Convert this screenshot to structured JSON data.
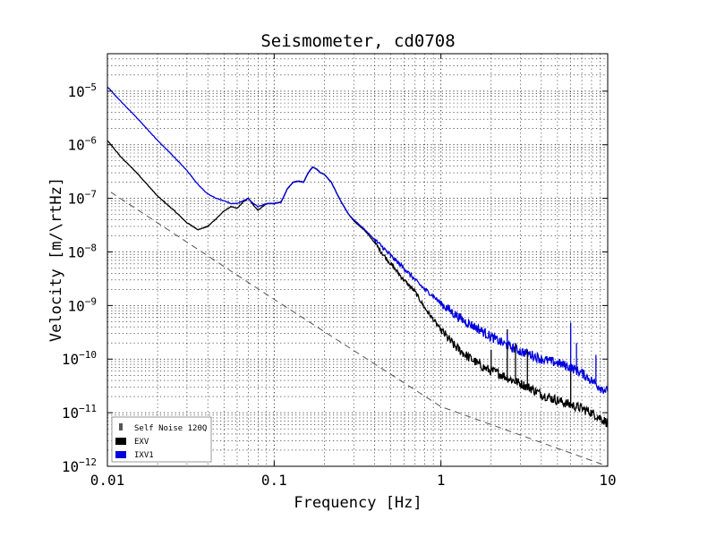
{
  "chart_data": {
    "type": "line",
    "title": "Seismometer, cd0708",
    "xlabel": "Frequency [Hz]",
    "ylabel": "Velocity [m/\\rtHz]",
    "x_scale": "log",
    "y_scale": "log",
    "xlim": [
      0.01,
      10
    ],
    "ylim": [
      1e-12,
      5e-05
    ],
    "grid": "major-and-minor-dotted",
    "legend_position": "bottom-left",
    "x_ticks": [
      {
        "value": 0.01,
        "label": "0.01"
      },
      {
        "value": 0.1,
        "label": "0.1"
      },
      {
        "value": 1,
        "label": "1"
      },
      {
        "value": 10,
        "label": "10"
      }
    ],
    "y_ticks": [
      {
        "value": 1e-12,
        "base": "10",
        "exp": "−12"
      },
      {
        "value": 1e-11,
        "base": "10",
        "exp": "−11"
      },
      {
        "value": 1e-10,
        "base": "10",
        "exp": "−10"
      },
      {
        "value": 1e-09,
        "base": "10",
        "exp": "−9"
      },
      {
        "value": 1e-08,
        "base": "10",
        "exp": "−8"
      },
      {
        "value": 1e-07,
        "base": "10",
        "exp": "−7"
      },
      {
        "value": 1e-06,
        "base": "10",
        "exp": "−6"
      },
      {
        "value": 1e-05,
        "base": "10",
        "exp": "−5"
      }
    ],
    "series": [
      {
        "name": "Self Noise 120Q",
        "color": "#555555",
        "style": "dashed",
        "x": [
          0.0105,
          0.1,
          1,
          10
        ],
        "y": [
          1.3e-07,
          1.3e-09,
          1.3e-11,
          1e-12
        ]
      },
      {
        "name": "EXV",
        "color": "#000000",
        "style": "solid",
        "x": [
          0.01,
          0.012,
          0.015,
          0.02,
          0.025,
          0.03,
          0.035,
          0.04,
          0.045,
          0.05,
          0.055,
          0.06,
          0.065,
          0.07,
          0.075,
          0.08,
          0.09,
          0.1,
          0.11,
          0.12,
          0.13,
          0.14,
          0.15,
          0.16,
          0.17,
          0.18,
          0.19,
          0.2,
          0.22,
          0.25,
          0.28,
          0.3,
          0.35,
          0.4,
          0.45,
          0.5,
          0.6,
          0.7,
          0.8,
          0.9,
          1.0,
          1.2,
          1.4,
          1.6,
          1.8,
          2.0,
          2.2,
          2.5,
          3.0,
          3.5,
          4.0,
          5.0,
          6.0,
          7.0,
          8.0,
          9.0,
          10.0
        ],
        "y": [
          1.2e-06,
          6e-07,
          3e-07,
          1.1e-07,
          6e-08,
          3.5e-08,
          2.6e-08,
          3e-08,
          4.2e-08,
          5.8e-08,
          7e-08,
          6.5e-08,
          8.5e-08,
          1e-07,
          7.5e-08,
          6e-08,
          8e-08,
          8e-08,
          8.5e-08,
          1.5e-07,
          2e-07,
          2.1e-07,
          2e-07,
          3e-07,
          3.9e-07,
          3.5e-07,
          3e-07,
          2.8e-07,
          2e-07,
          9e-08,
          5e-08,
          3.8e-08,
          2.5e-08,
          1.5e-08,
          9e-09,
          6e-09,
          3e-09,
          1.8e-09,
          9e-10,
          5.5e-10,
          3.5e-10,
          1.8e-10,
          1.2e-10,
          9e-11,
          7e-11,
          6e-11,
          5.5e-11,
          4.5e-11,
          3.5e-11,
          2.8e-11,
          2.2e-11,
          1.7e-11,
          1.4e-11,
          1.2e-11,
          1e-11,
          8e-12,
          6.5e-12
        ]
      },
      {
        "name": "IXV1",
        "color": "#0000dd",
        "style": "solid",
        "x": [
          0.01,
          0.012,
          0.015,
          0.02,
          0.025,
          0.03,
          0.035,
          0.04,
          0.045,
          0.05,
          0.055,
          0.06,
          0.065,
          0.07,
          0.075,
          0.08,
          0.09,
          0.1,
          0.11,
          0.12,
          0.13,
          0.14,
          0.15,
          0.16,
          0.17,
          0.18,
          0.19,
          0.2,
          0.22,
          0.25,
          0.28,
          0.3,
          0.35,
          0.4,
          0.45,
          0.5,
          0.6,
          0.7,
          0.8,
          0.9,
          1.0,
          1.2,
          1.4,
          1.6,
          1.8,
          2.0,
          2.2,
          2.5,
          3.0,
          3.5,
          4.0,
          5.0,
          6.0,
          7.0,
          8.0,
          9.0,
          10.0
        ],
        "y": [
          1.2e-05,
          6.5e-06,
          3.2e-06,
          1.2e-06,
          6e-07,
          3.3e-07,
          1.8e-07,
          1.2e-07,
          1e-07,
          9e-08,
          8e-08,
          8e-08,
          9e-08,
          1e-07,
          8e-08,
          7e-08,
          8e-08,
          8e-08,
          8.5e-08,
          1.5e-07,
          2e-07,
          2.1e-07,
          2e-07,
          3e-07,
          3.8e-07,
          3.5e-07,
          3e-07,
          2.8e-07,
          2e-07,
          9e-08,
          5e-08,
          4e-08,
          2.6e-08,
          1.7e-08,
          1.2e-08,
          8.5e-09,
          5e-09,
          3e-09,
          2e-09,
          1.5e-09,
          1.1e-09,
          7e-10,
          5e-10,
          4e-10,
          3.2e-10,
          2.6e-10,
          2.2e-10,
          1.8e-10,
          1.4e-10,
          1.2e-10,
          1e-10,
          8.5e-11,
          7e-11,
          5.5e-11,
          4e-11,
          3e-11,
          2.5e-11
        ]
      }
    ],
    "spikes": [
      {
        "series": "EXV",
        "x": 2.0,
        "y": 1.5e-10
      },
      {
        "series": "EXV",
        "x": 2.5,
        "y": 3.6e-10
      },
      {
        "series": "EXV",
        "x": 2.8,
        "y": 2e-10
      },
      {
        "series": "EXV",
        "x": 3.3,
        "y": 1.5e-10
      },
      {
        "series": "EXV",
        "x": 6.0,
        "y": 6e-11
      },
      {
        "series": "IXV1",
        "x": 2.5,
        "y": 3e-10
      },
      {
        "series": "IXV1",
        "x": 6.0,
        "y": 4.8e-10
      },
      {
        "series": "IXV1",
        "x": 6.5,
        "y": 2e-10
      },
      {
        "series": "IXV1",
        "x": 8.5,
        "y": 1.2e-10
      }
    ]
  }
}
